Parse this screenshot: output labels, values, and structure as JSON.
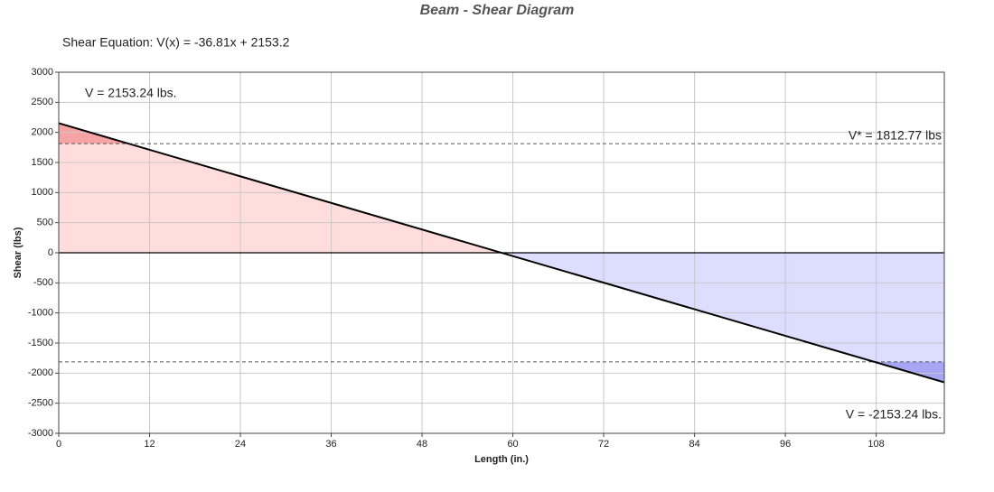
{
  "chart_data": {
    "type": "line",
    "title": "Beam - Shear Diagram",
    "subtitle": "Shear Equation:  V(x) = -36.81x + 2153.2",
    "x_label": "Length (in.)",
    "y_label": "Shear (lbs)",
    "x": [
      0,
      117
    ],
    "values": [
      2153.24,
      -2153.24
    ],
    "color": "#000000",
    "reference_lines": [
      1812.77,
      -1812.77
    ],
    "fill_colors": {
      "positive": "#ffdddd",
      "positive_exceed": "#f6a3a3",
      "negative": "#ddddff",
      "negative_exceed": "#a6a6f4"
    },
    "annotations": [
      "V = 2153.24 lbs.",
      "V* = 1812.77 lbs",
      "V = -2153.24 lbs."
    ],
    "xlim": [
      0,
      117
    ],
    "xticks": [
      0,
      12,
      24,
      36,
      48,
      60,
      72,
      84,
      96,
      108
    ],
    "ylim": [
      -3000,
      3000
    ],
    "yticks": [
      -3000,
      -2500,
      -2000,
      -1500,
      -1000,
      -500,
      0,
      500,
      1000,
      1500,
      2000,
      2500,
      3000
    ],
    "grid": true
  }
}
